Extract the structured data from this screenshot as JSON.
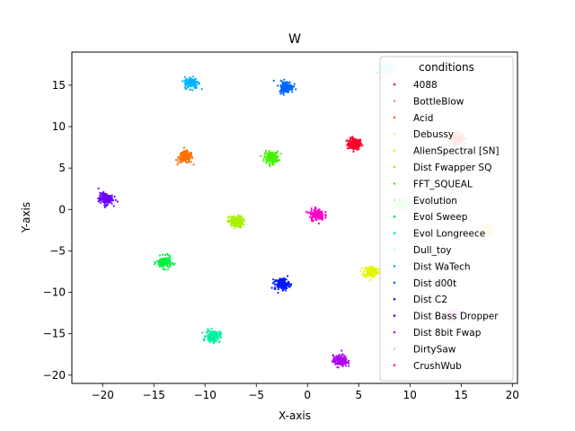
{
  "chart_data": {
    "type": "scatter",
    "title": "W",
    "xlabel": "X-axis",
    "ylabel": "Y-axis",
    "xlim": [
      -23,
      20.5
    ],
    "ylim": [
      -21,
      19
    ],
    "xticks": [
      -20,
      -15,
      -10,
      -5,
      0,
      5,
      10,
      15,
      20
    ],
    "yticks": [
      -20,
      -15,
      -10,
      -5,
      0,
      5,
      10,
      15
    ],
    "grid": false,
    "legend_title": "conditions",
    "legend_position": "upper right",
    "series": [
      {
        "name": "4088",
        "color": "#ff0029",
        "center": [
          4.6,
          7.9
        ],
        "spread": 0.35
      },
      {
        "name": "BottleBlow",
        "color": "#ff8a80",
        "center": [
          14.6,
          8.6
        ],
        "spread": 0.3
      },
      {
        "name": "Acid",
        "color": "#ff7000",
        "center": [
          -11.9,
          6.3
        ],
        "spread": 0.35
      },
      {
        "name": "Debussy",
        "color": "#ffd9a0",
        "center": [
          17.5,
          -2.4
        ],
        "spread": 0.3
      },
      {
        "name": "AlienSpectral [SN]",
        "color": "#e6f500",
        "center": [
          6.2,
          -7.5
        ],
        "spread": 0.35
      },
      {
        "name": "Dist Fwapper SQ",
        "color": "#a8f000",
        "center": [
          -7.0,
          -1.5
        ],
        "spread": 0.35
      },
      {
        "name": "FFT_SQUEAL",
        "color": "#45f000",
        "center": [
          -3.5,
          6.3
        ],
        "spread": 0.35
      },
      {
        "name": "Evolution",
        "color": "#b3f5b3",
        "center": [
          9.4,
          0.8
        ],
        "spread": 0.3
      },
      {
        "name": "Evol Sweep",
        "color": "#00f044",
        "center": [
          -14.0,
          -6.4
        ],
        "spread": 0.35
      },
      {
        "name": "Evol Longreece",
        "color": "#00f0a0",
        "center": [
          -9.2,
          -15.3
        ],
        "spread": 0.35
      },
      {
        "name": "Dull_toy",
        "color": "#b0fff4",
        "center": [
          7.8,
          17.0
        ],
        "spread": 0.3
      },
      {
        "name": "Dist WaTech",
        "color": "#00b4ff",
        "center": [
          -11.3,
          15.3
        ],
        "spread": 0.35
      },
      {
        "name": "Dist d00t",
        "color": "#0066ff",
        "center": [
          -2.1,
          14.8
        ],
        "spread": 0.35
      },
      {
        "name": "Dist C2",
        "color": "#0018ff",
        "center": [
          -2.5,
          -9.0
        ],
        "spread": 0.35
      },
      {
        "name": "Dist Bass Dropper",
        "color": "#6a00ff",
        "center": [
          -19.7,
          1.3
        ],
        "spread": 0.35
      },
      {
        "name": "Dist 8bit Fwap",
        "color": "#b000f0",
        "center": [
          3.2,
          -18.3
        ],
        "spread": 0.35
      },
      {
        "name": "DirtySaw",
        "color": "#ffb3ff",
        "center": [
          14.2,
          -12.7
        ],
        "spread": 0.3
      },
      {
        "name": "CrushWub",
        "color": "#ff00c8",
        "center": [
          0.9,
          -0.6
        ],
        "spread": 0.35
      }
    ]
  }
}
